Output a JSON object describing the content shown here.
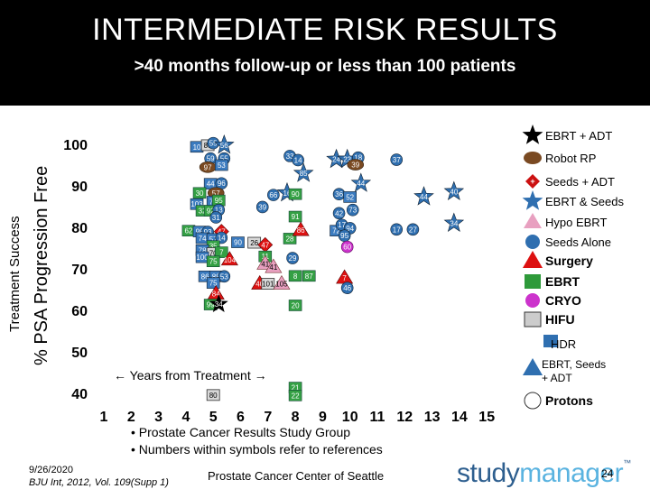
{
  "title": "INTERMEDIATE RISK RESULTS",
  "subtitle": ">40 months follow-up or less than 100 patients",
  "ylabel_outer": "Treatment Success",
  "ylabel_inner": "% PSA Progression Free",
  "years_note": "← Years from Treatment →",
  "footnotes": [
    "• Prostate Cancer Results Study Group",
    "• Numbers within symbols refer to references"
  ],
  "date": "9/26/2020",
  "citation": "BJU Int, 2012, Vol. 109(Supp 1)",
  "center": "Prostate Cancer Center of Seattle",
  "brand_a": "study",
  "brand_b": "manager",
  "brand_tm": "™",
  "page_number": "24",
  "legend": [
    {
      "label": "EBRT + ADT",
      "icon": "black-star-icon",
      "color": "#000000"
    },
    {
      "label": "Robot RP",
      "icon": "brown-ellipse-icon",
      "color": "#7a4a22"
    },
    {
      "label": "Seeds + ADT",
      "icon": "red-diamond-icon",
      "color": "#cc1111"
    },
    {
      "label": "EBRT & Seeds",
      "icon": "blue-star-icon",
      "color": "#2f6fb0"
    },
    {
      "label": "Hypo EBRT",
      "icon": "pink-triangle-icon",
      "color": "#e8a0c0"
    },
    {
      "label": "Seeds Alone",
      "icon": "blue-circle-icon",
      "color": "#2f6fb0"
    },
    {
      "label": "Surgery",
      "icon": "red-triangle-icon",
      "color": "#dd1111"
    },
    {
      "label": "EBRT",
      "icon": "green-square-icon",
      "color": "#2e9a3a"
    },
    {
      "label": "CRYO",
      "icon": "purple-circle-icon",
      "color": "#cc33cc"
    },
    {
      "label": "HIFU",
      "icon": "gray-square-icon",
      "color": "#cccccc"
    },
    {
      "label": "HDR",
      "icon": "blue-square-icon",
      "color": "#2f6fb0"
    },
    {
      "label": "EBRT, Seeds + ADT",
      "icon": "blue-triangle-icon",
      "color": "#2f6fb0"
    },
    {
      "label": "Protons",
      "icon": "white-circle-icon",
      "color": "#ffffff"
    }
  ],
  "chart_data": {
    "type": "scatter",
    "x_ticks": [
      "1",
      "2",
      "3",
      "4",
      "5",
      "6",
      "7",
      "8",
      "9",
      "10",
      "11",
      "12",
      "13",
      "14",
      "15"
    ],
    "y_ticks": [
      "100",
      "90",
      "80",
      "70",
      "60",
      "50",
      "40"
    ],
    "xlim": [
      1,
      15
    ],
    "ylim": [
      40,
      100
    ],
    "points": [
      {
        "x": 4.4,
        "y": 99.4,
        "label": "10",
        "shape": "blue-square"
      },
      {
        "x": 4.8,
        "y": 99.8,
        "label": "80",
        "shape": "gray-square"
      },
      {
        "x": 5.0,
        "y": 100.3,
        "label": "55",
        "shape": "blue-circle"
      },
      {
        "x": 5.4,
        "y": 99.8,
        "label": "56",
        "shape": "blue-star"
      },
      {
        "x": 4.9,
        "y": 96.6,
        "label": "59",
        "shape": "blue-circle"
      },
      {
        "x": 5.4,
        "y": 96.6,
        "label": "55",
        "shape": "blue-circle"
      },
      {
        "x": 4.8,
        "y": 94.5,
        "label": "97",
        "shape": "brown-ellipse"
      },
      {
        "x": 5.3,
        "y": 95.0,
        "label": "53",
        "shape": "blue-square"
      },
      {
        "x": 7.8,
        "y": 97.2,
        "label": "33",
        "shape": "blue-circle"
      },
      {
        "x": 8.1,
        "y": 96.2,
        "label": "14",
        "shape": "blue-circle"
      },
      {
        "x": 9.5,
        "y": 96.4,
        "label": "24",
        "shape": "blue-star"
      },
      {
        "x": 9.9,
        "y": 96.4,
        "label": "23",
        "shape": "blue-star"
      },
      {
        "x": 10.3,
        "y": 96.8,
        "label": "18",
        "shape": "blue-circle"
      },
      {
        "x": 10.2,
        "y": 95.1,
        "label": "39",
        "shape": "brown-ellipse"
      },
      {
        "x": 11.7,
        "y": 96.3,
        "label": "37",
        "shape": "blue-circle"
      },
      {
        "x": 8.3,
        "y": 93.0,
        "label": "85",
        "shape": "blue-star"
      },
      {
        "x": 4.9,
        "y": 90.5,
        "label": "44",
        "shape": "blue-square"
      },
      {
        "x": 5.3,
        "y": 90.6,
        "label": "96",
        "shape": "blue-circle"
      },
      {
        "x": 4.5,
        "y": 88.3,
        "label": "30",
        "shape": "green-square"
      },
      {
        "x": 5.1,
        "y": 88.3,
        "label": "57",
        "shape": "brown-ellipse"
      },
      {
        "x": 4.4,
        "y": 85.6,
        "label": "103",
        "shape": "blue-square"
      },
      {
        "x": 5.0,
        "y": 86.2,
        "label": "77",
        "shape": "blue-square"
      },
      {
        "x": 5.2,
        "y": 86.5,
        "label": "95",
        "shape": "green-square"
      },
      {
        "x": 4.6,
        "y": 84.0,
        "label": "32",
        "shape": "green-square"
      },
      {
        "x": 4.9,
        "y": 84.0,
        "label": "92",
        "shape": "green-square"
      },
      {
        "x": 5.2,
        "y": 84.2,
        "label": "13",
        "shape": "blue-circle"
      },
      {
        "x": 5.1,
        "y": 82.4,
        "label": "31",
        "shape": "blue-circle"
      },
      {
        "x": 7.2,
        "y": 87.8,
        "label": "66",
        "shape": "blue-circle"
      },
      {
        "x": 7.7,
        "y": 88.3,
        "label": "16",
        "shape": "blue-star"
      },
      {
        "x": 8.0,
        "y": 88.0,
        "label": "90",
        "shape": "green-square"
      },
      {
        "x": 9.6,
        "y": 88.0,
        "label": "36",
        "shape": "blue-circle"
      },
      {
        "x": 10.0,
        "y": 87.3,
        "label": "52",
        "shape": "blue-square"
      },
      {
        "x": 10.4,
        "y": 90.6,
        "label": "44",
        "shape": "blue-star"
      },
      {
        "x": 12.7,
        "y": 87.4,
        "label": "44",
        "shape": "blue-star"
      },
      {
        "x": 13.8,
        "y": 88.6,
        "label": "40",
        "shape": "blue-star"
      },
      {
        "x": 6.8,
        "y": 84.9,
        "label": "39",
        "shape": "blue-circle"
      },
      {
        "x": 9.6,
        "y": 83.4,
        "label": "42",
        "shape": "blue-circle"
      },
      {
        "x": 10.1,
        "y": 84.2,
        "label": "73",
        "shape": "blue-circle"
      },
      {
        "x": 8.0,
        "y": 82.6,
        "label": "91",
        "shape": "green-square"
      },
      {
        "x": 4.1,
        "y": 79.2,
        "label": "62",
        "shape": "green-square"
      },
      {
        "x": 4.5,
        "y": 79.0,
        "label": "98",
        "shape": "blue-square"
      },
      {
        "x": 4.8,
        "y": 78.9,
        "label": "93",
        "shape": "blue-circle"
      },
      {
        "x": 5.3,
        "y": 79.0,
        "label": "47",
        "shape": "red-diamond"
      },
      {
        "x": 4.6,
        "y": 77.4,
        "label": "74",
        "shape": "blue-square"
      },
      {
        "x": 5.0,
        "y": 77.2,
        "label": "57",
        "shape": "blue-square"
      },
      {
        "x": 5.3,
        "y": 77.5,
        "label": "14",
        "shape": "blue-circle"
      },
      {
        "x": 5.9,
        "y": 76.4,
        "label": "90",
        "shape": "blue-square"
      },
      {
        "x": 6.5,
        "y": 76.3,
        "label": "26",
        "shape": "gray-square"
      },
      {
        "x": 6.9,
        "y": 75.8,
        "label": "47",
        "shape": "red-diamond"
      },
      {
        "x": 7.8,
        "y": 77.3,
        "label": "28",
        "shape": "green-square"
      },
      {
        "x": 8.2,
        "y": 79.3,
        "label": "86",
        "shape": "red-triangle"
      },
      {
        "x": 9.5,
        "y": 79.2,
        "label": "72",
        "shape": "blue-square"
      },
      {
        "x": 9.7,
        "y": 80.6,
        "label": "17",
        "shape": "blue-circle"
      },
      {
        "x": 10.0,
        "y": 79.8,
        "label": "94",
        "shape": "blue-circle"
      },
      {
        "x": 9.8,
        "y": 78.0,
        "label": "95",
        "shape": "blue-circle"
      },
      {
        "x": 9.9,
        "y": 75.3,
        "label": "60",
        "shape": "purple-circle"
      },
      {
        "x": 11.7,
        "y": 79.5,
        "label": "17",
        "shape": "blue-circle"
      },
      {
        "x": 12.3,
        "y": 79.5,
        "label": "27",
        "shape": "blue-circle"
      },
      {
        "x": 13.8,
        "y": 81.0,
        "label": "34",
        "shape": "blue-star"
      },
      {
        "x": 5.0,
        "y": 75.5,
        "label": "35",
        "shape": "green-square"
      },
      {
        "x": 4.6,
        "y": 74.5,
        "label": "78",
        "shape": "blue-square"
      },
      {
        "x": 5.0,
        "y": 73.8,
        "label": "70",
        "shape": "gray-square"
      },
      {
        "x": 5.3,
        "y": 74.0,
        "label": "7",
        "shape": "green-square"
      },
      {
        "x": 4.6,
        "y": 72.8,
        "label": "100",
        "shape": "blue-square"
      },
      {
        "x": 5.0,
        "y": 71.8,
        "label": "75",
        "shape": "green-square"
      },
      {
        "x": 5.6,
        "y": 72.2,
        "label": "104",
        "shape": "red-triangle"
      },
      {
        "x": 6.9,
        "y": 73.0,
        "label": "11",
        "shape": "green-square"
      },
      {
        "x": 6.9,
        "y": 71.2,
        "label": "41",
        "shape": "pink-triangle"
      },
      {
        "x": 7.2,
        "y": 70.4,
        "label": "41",
        "shape": "pink-triangle"
      },
      {
        "x": 7.9,
        "y": 72.6,
        "label": "29",
        "shape": "blue-circle"
      },
      {
        "x": 4.7,
        "y": 68.2,
        "label": "86",
        "shape": "blue-square"
      },
      {
        "x": 5.1,
        "y": 68.2,
        "label": "88",
        "shape": "blue-square"
      },
      {
        "x": 5.4,
        "y": 68.2,
        "label": "53",
        "shape": "blue-circle"
      },
      {
        "x": 5.0,
        "y": 66.6,
        "label": "75",
        "shape": "blue-square"
      },
      {
        "x": 8.0,
        "y": 68.3,
        "label": "8",
        "shape": "green-square"
      },
      {
        "x": 8.5,
        "y": 68.3,
        "label": "87",
        "shape": "green-square"
      },
      {
        "x": 9.8,
        "y": 67.8,
        "label": "7",
        "shape": "red-triangle"
      },
      {
        "x": 6.7,
        "y": 66.4,
        "label": "40",
        "shape": "red-triangle"
      },
      {
        "x": 7.0,
        "y": 66.4,
        "label": "101",
        "shape": "gray-square"
      },
      {
        "x": 7.5,
        "y": 66.4,
        "label": "105",
        "shape": "pink-triangle"
      },
      {
        "x": 9.9,
        "y": 65.4,
        "label": "46",
        "shape": "blue-circle"
      },
      {
        "x": 5.1,
        "y": 64.0,
        "label": "84",
        "shape": "red-triangle"
      },
      {
        "x": 4.9,
        "y": 61.4,
        "label": "99",
        "shape": "green-square"
      },
      {
        "x": 5.2,
        "y": 61.5,
        "label": "34",
        "shape": "black-star"
      },
      {
        "x": 8.0,
        "y": 61.2,
        "label": "20",
        "shape": "green-square"
      },
      {
        "x": 8.0,
        "y": 41.4,
        "label": "21",
        "shape": "green-square"
      },
      {
        "x": 5.0,
        "y": 39.6,
        "label": "80",
        "shape": "gray-square"
      },
      {
        "x": 8.0,
        "y": 39.5,
        "label": "22",
        "shape": "green-square"
      }
    ]
  }
}
